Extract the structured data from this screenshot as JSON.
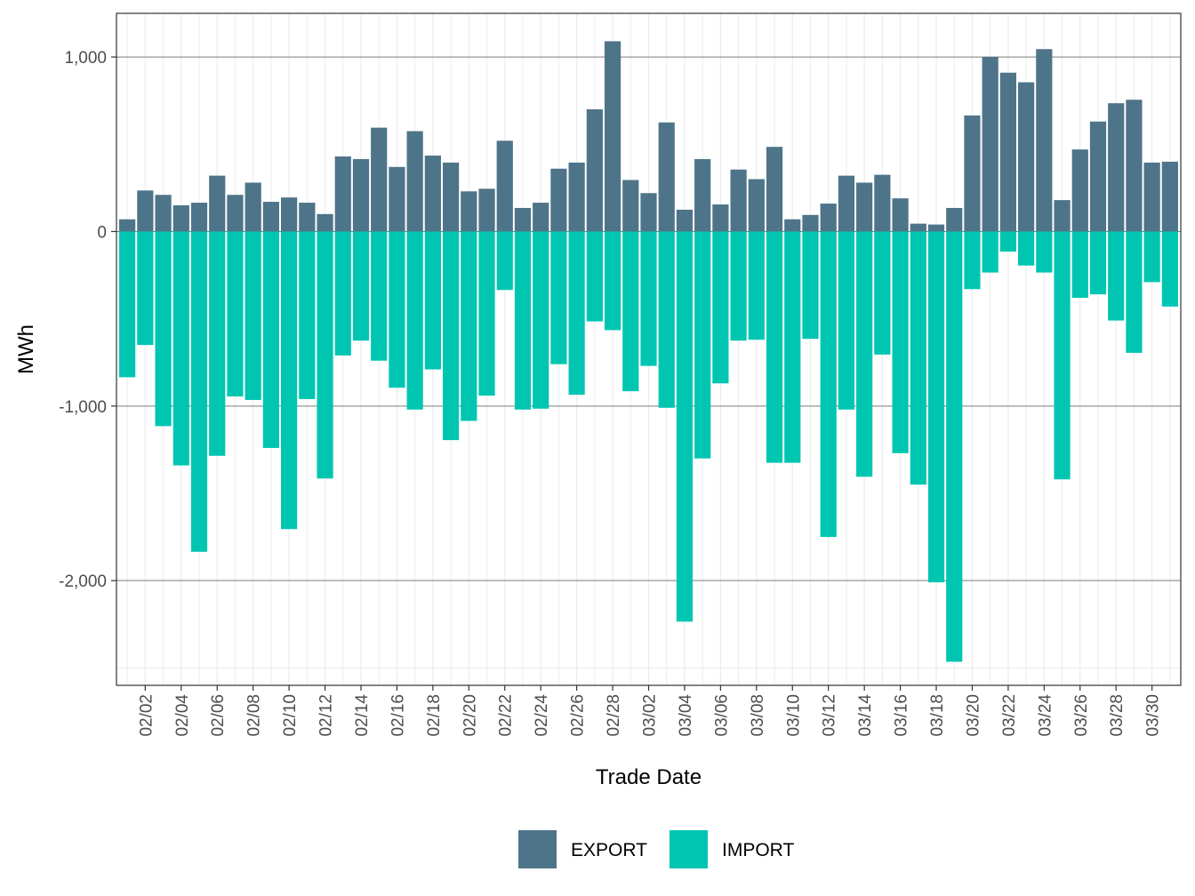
{
  "chart_data": {
    "type": "bar",
    "stacked": "diverging",
    "xlabel": "Trade Date",
    "ylabel": "MWh",
    "ylim": [
      -2600,
      1250
    ],
    "y_ticks": [
      1000,
      0,
      -1000,
      -2000
    ],
    "y_tick_labels": [
      "1,000",
      "0",
      "-1,000",
      "-2,000"
    ],
    "grid": true,
    "legend_position": "bottom",
    "categories": [
      "02/01",
      "02/02",
      "02/03",
      "02/04",
      "02/05",
      "02/06",
      "02/07",
      "02/08",
      "02/09",
      "02/10",
      "02/11",
      "02/12",
      "02/13",
      "02/14",
      "02/15",
      "02/16",
      "02/17",
      "02/18",
      "02/19",
      "02/20",
      "02/21",
      "02/22",
      "02/23",
      "02/24",
      "02/25",
      "02/26",
      "02/27",
      "02/28",
      "03/01",
      "03/02",
      "03/03",
      "03/04",
      "03/05",
      "03/06",
      "03/07",
      "03/08",
      "03/09",
      "03/10",
      "03/11",
      "03/12",
      "03/13",
      "03/14",
      "03/15",
      "03/16",
      "03/17",
      "03/18",
      "03/19",
      "03/20",
      "03/21",
      "03/22",
      "03/23",
      "03/24",
      "03/25",
      "03/26",
      "03/27",
      "03/28",
      "03/29",
      "03/30",
      "03/31"
    ],
    "x_tick_labels": [
      "02/02",
      "02/04",
      "02/06",
      "02/08",
      "02/10",
      "02/12",
      "02/14",
      "02/16",
      "02/18",
      "02/20",
      "02/22",
      "02/24",
      "02/26",
      "02/28",
      "03/02",
      "03/04",
      "03/06",
      "03/08",
      "03/10",
      "03/12",
      "03/14",
      "03/16",
      "03/18",
      "03/20",
      "03/22",
      "03/24",
      "03/26",
      "03/28",
      "03/30"
    ],
    "series": [
      {
        "name": "EXPORT",
        "color": "#4e7489",
        "values": [
          70,
          235,
          210,
          150,
          165,
          320,
          210,
          280,
          170,
          195,
          165,
          100,
          430,
          415,
          595,
          370,
          575,
          435,
          395,
          230,
          245,
          520,
          135,
          165,
          360,
          395,
          700,
          1090,
          295,
          220,
          625,
          125,
          415,
          155,
          355,
          300,
          485,
          70,
          95,
          160,
          320,
          280,
          325,
          190,
          45,
          40,
          135,
          665,
          1000,
          910,
          855,
          1045,
          180,
          470,
          630,
          735,
          755,
          395,
          400
        ]
      },
      {
        "name": "IMPORT",
        "color": "#00c6b1",
        "values": [
          -835,
          -650,
          -1115,
          -1340,
          -1835,
          -1285,
          -945,
          -965,
          -1240,
          -1705,
          -960,
          -1415,
          -710,
          -625,
          -740,
          -895,
          -1020,
          -790,
          -1195,
          -1085,
          -940,
          -335,
          -1020,
          -1015,
          -760,
          -935,
          -515,
          -565,
          -915,
          -770,
          -1010,
          -2235,
          -1300,
          -870,
          -625,
          -620,
          -1325,
          -1325,
          -615,
          -1750,
          -1020,
          -1405,
          -705,
          -1270,
          -1450,
          -2010,
          -2465,
          -330,
          -235,
          -115,
          -195,
          -235,
          -1420,
          -380,
          -360,
          -510,
          -695,
          -290,
          -430
        ]
      }
    ]
  }
}
